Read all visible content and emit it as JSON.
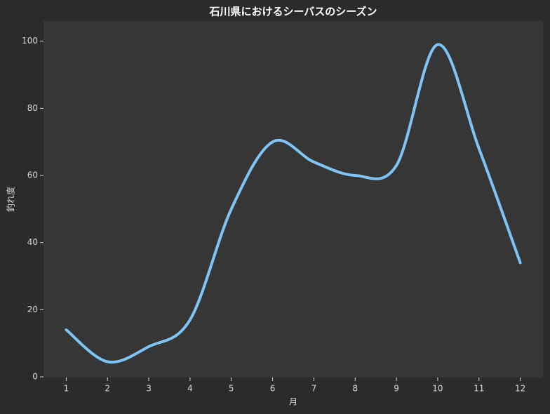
{
  "chart_data": {
    "type": "line",
    "title": "石川県におけるシーバスのシーズン",
    "x_label": "月",
    "y_label": "釣れ度",
    "x": [
      1,
      2,
      3,
      4,
      5,
      6,
      7,
      8,
      9,
      10,
      11,
      12
    ],
    "series": [
      {
        "color": "#7ec4f5",
        "values": [
          14,
          4.5,
          9,
          17,
          50,
          70,
          64,
          60,
          63,
          99,
          68,
          34
        ]
      }
    ],
    "xlim": [
      0.45,
      12.55
    ],
    "ylim": [
      -0.2,
      106
    ],
    "xticks": [
      1,
      2,
      3,
      4,
      5,
      6,
      7,
      8,
      9,
      10,
      11,
      12
    ],
    "yticks": [
      0,
      20,
      40,
      60,
      80,
      100
    ],
    "smooth": true
  }
}
